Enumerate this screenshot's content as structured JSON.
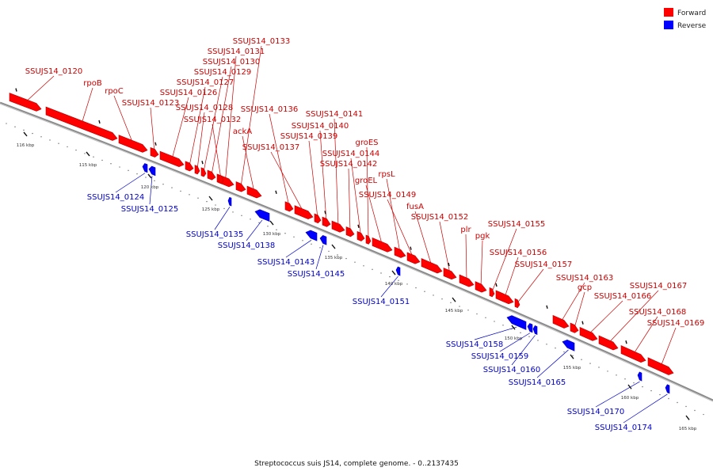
{
  "caption": "Streptococcus suis JS14, complete genome. - 0..2137435",
  "legend": [
    {
      "label": "Forward",
      "color": "#ff0000"
    },
    {
      "label": "Reverse",
      "color": "#0000ff"
    }
  ],
  "colors": {
    "forward": "#ff0000",
    "forward_dark": "#b20000",
    "reverse": "#0000ff",
    "reverse_dark": "#0000a8",
    "backbone": "#8a8a8a",
    "forward_label": "#cc0000",
    "reverse_label": "#0000cc"
  },
  "ticks": [
    {
      "kbp": 115,
      "label": "115 kbp"
    },
    {
      "kbp": 116,
      "label": "116 kbp"
    },
    {
      "kbp": 120,
      "label": "120 kbp"
    },
    {
      "kbp": 125,
      "label": "125 kbp"
    },
    {
      "kbp": 130,
      "label": "130 kbp"
    },
    {
      "kbp": 135,
      "label": "135 kbp"
    },
    {
      "kbp": 140,
      "label": "140 kbp"
    },
    {
      "kbp": 145,
      "label": "145 kbp"
    },
    {
      "kbp": 150,
      "label": "150 kbp"
    },
    {
      "kbp": 155,
      "label": "155 kbp"
    },
    {
      "kbp": 160,
      "label": "160 kbp"
    },
    {
      "kbp": 165,
      "label": "165 kbp"
    }
  ],
  "forward_genes": [
    {
      "name": "SSUJS14_0120"
    },
    {
      "name": "rpoB"
    },
    {
      "name": "rpoC"
    },
    {
      "name": "SSUJS14_0123"
    },
    {
      "name": "SSUJS14_0126"
    },
    {
      "name": "SSUJS14_0127"
    },
    {
      "name": "SSUJS14_0128"
    },
    {
      "name": "SSUJS14_0129"
    },
    {
      "name": "SSUJS14_0130"
    },
    {
      "name": "SSUJS14_0131"
    },
    {
      "name": "SSUJS14_0132"
    },
    {
      "name": "SSUJS14_0133"
    },
    {
      "name": "ackA"
    },
    {
      "name": "SSUJS14_0136"
    },
    {
      "name": "SSUJS14_0137"
    },
    {
      "name": "SSUJS14_0139"
    },
    {
      "name": "SSUJS14_0140"
    },
    {
      "name": "SSUJS14_0141"
    },
    {
      "name": "SSUJS14_0142"
    },
    {
      "name": "SSUJS14_0144"
    },
    {
      "name": "groES"
    },
    {
      "name": "groEL"
    },
    {
      "name": "rpsL"
    },
    {
      "name": "SSUJS14_0149"
    },
    {
      "name": "fusA"
    },
    {
      "name": "SSUJS14_0152"
    },
    {
      "name": "plr"
    },
    {
      "name": "pgk"
    },
    {
      "name": "SSUJS14_0155"
    },
    {
      "name": "SSUJS14_0156"
    },
    {
      "name": "SSUJS14_0157"
    },
    {
      "name": "SSUJS14_0163"
    },
    {
      "name": "gcp"
    },
    {
      "name": "SSUJS14_0166"
    },
    {
      "name": "SSUJS14_0167"
    },
    {
      "name": "SSUJS14_0168"
    },
    {
      "name": "SSUJS14_0169"
    }
  ],
  "reverse_genes": [
    {
      "name": "SSUJS14_0124"
    },
    {
      "name": "SSUJS14_0125"
    },
    {
      "name": "SSUJS14_0135"
    },
    {
      "name": "SSUJS14_0138"
    },
    {
      "name": "SSUJS14_0143"
    },
    {
      "name": "SSUJS14_0145"
    },
    {
      "name": "SSUJS14_0151"
    },
    {
      "name": "SSUJS14_0158"
    },
    {
      "name": "SSUJS14_0159"
    },
    {
      "name": "SSUJS14_0160"
    },
    {
      "name": "SSUJS14_0165"
    },
    {
      "name": "SSUJS14_0170"
    },
    {
      "name": "SSUJS14_0174"
    }
  ]
}
